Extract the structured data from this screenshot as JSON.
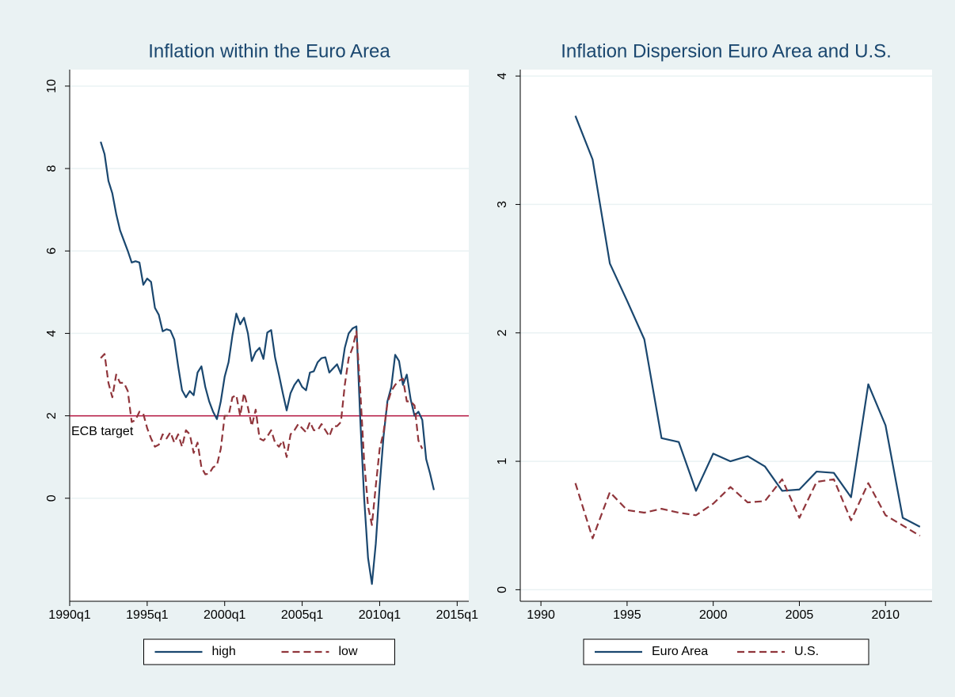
{
  "chart_data": [
    {
      "type": "line",
      "title": "Inflation within the Euro Area",
      "x": [
        "1992q1",
        "1992q2",
        "1992q3",
        "1992q4",
        "1993q1",
        "1993q2",
        "1993q3",
        "1993q4",
        "1994q1",
        "1994q2",
        "1994q3",
        "1994q4",
        "1995q1",
        "1995q2",
        "1995q3",
        "1995q4",
        "1996q1",
        "1996q2",
        "1996q3",
        "1996q4",
        "1997q1",
        "1997q2",
        "1997q3",
        "1997q4",
        "1998q1",
        "1998q2",
        "1998q3",
        "1998q4",
        "1999q1",
        "1999q2",
        "1999q3",
        "1999q4",
        "2000q1",
        "2000q2",
        "2000q3",
        "2000q4",
        "2001q1",
        "2001q2",
        "2001q3",
        "2001q4",
        "2002q1",
        "2002q2",
        "2002q3",
        "2002q4",
        "2003q1",
        "2003q2",
        "2003q3",
        "2003q4",
        "2004q1",
        "2004q2",
        "2004q3",
        "2004q4",
        "2005q1",
        "2005q2",
        "2005q3",
        "2005q4",
        "2006q1",
        "2006q2",
        "2006q3",
        "2006q4",
        "2007q1",
        "2007q2",
        "2007q3",
        "2007q4",
        "2008q1",
        "2008q2",
        "2008q3",
        "2008q4",
        "2009q1",
        "2009q2",
        "2009q3",
        "2009q4",
        "2010q1",
        "2010q2",
        "2010q3",
        "2010q4",
        "2011q1",
        "2011q2",
        "2011q3",
        "2011q4",
        "2012q1",
        "2012q2",
        "2012q3",
        "2012q4",
        "2013q1",
        "2013q2",
        "2013q3"
      ],
      "series": [
        {
          "name": "high",
          "color": "#1a476f",
          "dash": "solid",
          "values": [
            8.65,
            8.35,
            7.7,
            7.4,
            6.9,
            6.5,
            6.25,
            6.0,
            5.72,
            5.75,
            5.72,
            5.18,
            5.33,
            5.25,
            4.62,
            4.45,
            4.05,
            4.1,
            4.07,
            3.85,
            3.2,
            2.62,
            2.45,
            2.6,
            2.5,
            3.05,
            3.2,
            2.7,
            2.35,
            2.1,
            1.92,
            2.35,
            2.95,
            3.3,
            3.95,
            4.48,
            4.22,
            4.38,
            4.0,
            3.33,
            3.55,
            3.65,
            3.38,
            4.02,
            4.08,
            3.42,
            3.0,
            2.55,
            2.13,
            2.55,
            2.75,
            2.88,
            2.7,
            2.62,
            3.05,
            3.08,
            3.3,
            3.4,
            3.42,
            3.05,
            3.15,
            3.25,
            3.02,
            3.65,
            4.0,
            4.12,
            4.17,
            1.9,
            0.0,
            -1.45,
            -2.08,
            -1.1,
            0.3,
            1.5,
            2.35,
            2.7,
            3.48,
            3.33,
            2.75,
            3.0,
            2.4,
            2.0,
            2.1,
            1.9,
            0.95,
            0.6,
            0.2
          ]
        },
        {
          "name": "low",
          "color": "#90353b",
          "dash": "dashed",
          "values": [
            3.4,
            3.5,
            2.8,
            2.45,
            3.0,
            2.8,
            2.8,
            2.6,
            1.85,
            1.9,
            2.1,
            2.05,
            1.7,
            1.45,
            1.25,
            1.3,
            1.55,
            1.45,
            1.6,
            1.35,
            1.55,
            1.25,
            1.65,
            1.55,
            1.1,
            1.35,
            0.75,
            0.58,
            0.6,
            0.75,
            0.8,
            1.2,
            2.0,
            2.0,
            2.45,
            2.5,
            2.0,
            2.55,
            2.2,
            1.75,
            2.15,
            1.45,
            1.4,
            1.5,
            1.65,
            1.35,
            1.25,
            1.4,
            1.0,
            1.55,
            1.65,
            1.8,
            1.7,
            1.6,
            1.85,
            1.65,
            1.65,
            1.8,
            1.65,
            1.5,
            1.75,
            1.75,
            1.85,
            2.75,
            3.4,
            3.65,
            4.05,
            2.6,
            0.9,
            -0.2,
            -0.65,
            0.3,
            1.2,
            1.6,
            2.3,
            2.6,
            2.75,
            2.85,
            2.9,
            2.35,
            2.35,
            2.25,
            1.4,
            1.2,
            null,
            null,
            null
          ]
        }
      ],
      "xlim": [
        "1990q1",
        "2015q4"
      ],
      "xticks": [
        "1990q1",
        "1995q1",
        "2000q1",
        "2005q1",
        "2010q1",
        "2015q1"
      ],
      "ylim": [
        -2.5,
        10.4
      ],
      "yticks": [
        0,
        2,
        4,
        6,
        8,
        10
      ],
      "grid": true,
      "legend": "bottom",
      "annotations": [
        {
          "text": "ECB target",
          "value": 2,
          "color": "#b5133f"
        }
      ]
    },
    {
      "type": "line",
      "title": "Inflation Dispersion Euro Area and U.S.",
      "x": [
        1992,
        1993,
        1994,
        1995,
        1996,
        1997,
        1998,
        1999,
        2000,
        2001,
        2002,
        2003,
        2004,
        2005,
        2006,
        2007,
        2008,
        2009,
        2010,
        2011,
        2012
      ],
      "series": [
        {
          "name": "Euro Area",
          "color": "#1a476f",
          "dash": "solid",
          "values": [
            3.69,
            3.35,
            2.54,
            2.25,
            1.95,
            1.18,
            1.15,
            0.77,
            1.06,
            1.0,
            1.04,
            0.96,
            0.77,
            0.78,
            0.92,
            0.91,
            0.72,
            1.6,
            1.28,
            0.56,
            0.49
          ]
        },
        {
          "name": "U.S.",
          "color": "#90353b",
          "dash": "dashed",
          "values": [
            0.83,
            0.4,
            0.76,
            0.62,
            0.6,
            0.63,
            0.6,
            0.58,
            0.67,
            0.8,
            0.68,
            0.69,
            0.86,
            0.56,
            0.84,
            0.86,
            0.54,
            0.83,
            0.58,
            0.5,
            0.42
          ]
        }
      ],
      "xlim": [
        1988.8,
        2012.7
      ],
      "xticks": [
        1990,
        1995,
        2000,
        2005,
        2010
      ],
      "ylim": [
        -0.09,
        4.05
      ],
      "yticks": [
        0,
        1,
        2,
        3,
        4
      ],
      "grid": true,
      "legend": "bottom"
    }
  ]
}
